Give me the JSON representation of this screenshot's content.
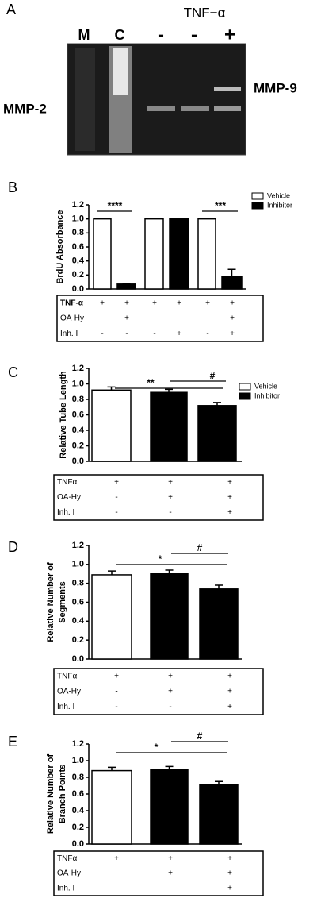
{
  "gel": {
    "panel": "A",
    "treatment_label": "TNF−α",
    "lanes": [
      "M",
      "C",
      "-",
      "-",
      "+"
    ],
    "bands": [
      "MMP-2",
      "MMP-9"
    ]
  },
  "chart_data": [
    {
      "type": "bar",
      "panel": "B",
      "y_label": "BrdU Absorbance",
      "categories": [
        null,
        null,
        null,
        null,
        null,
        null
      ],
      "series": [
        {
          "name": "Vehicle",
          "color": "#ffffff",
          "values": [
            1.0,
            null,
            1.0,
            null,
            1.0,
            null
          ]
        },
        {
          "name": "Inhibitor",
          "color": "#000000",
          "values": [
            null,
            0.07,
            null,
            1.0,
            null,
            0.18
          ]
        }
      ],
      "errors": [
        0.01,
        0.005,
        0.005,
        0.005,
        0.005,
        0.1
      ],
      "ylim": [
        0,
        1.2
      ],
      "yticks": [
        {
          "value": 0,
          "label": "0.0"
        },
        {
          "value": 0.2,
          "label": "0.2"
        },
        {
          "value": 0.4,
          "label": "0.4"
        },
        {
          "value": 0.6,
          "label": "0.6"
        },
        {
          "value": 0.8,
          "label": "0.8"
        },
        {
          "value": 1,
          "label": "1.0"
        },
        {
          "value": 1.2,
          "label": "1.2"
        }
      ],
      "annotations": [
        "****",
        "***"
      ],
      "table": [
        {
          "label": "TNF-α",
          "cells": [
            "+",
            "+",
            "+",
            "+",
            "+",
            "+"
          ]
        },
        {
          "label": "OA-Hy",
          "cells": [
            "-",
            "+",
            "-",
            "-",
            "-",
            "+"
          ]
        },
        {
          "label": "Inh. I",
          "cells": [
            "-",
            "-",
            "-",
            "+",
            "-",
            "+"
          ]
        }
      ]
    },
    {
      "type": "bar",
      "panel": "C",
      "y_label": "Relative Tube Length",
      "categories": [
        null,
        null,
        null
      ],
      "series": [
        {
          "name": "Vehicle",
          "color": "#ffffff",
          "values": [
            0.92,
            null,
            null
          ]
        },
        {
          "name": "Inhibitor",
          "color": "#000000",
          "values": [
            null,
            0.89,
            0.72
          ]
        }
      ],
      "errors": [
        0.04,
        0.04,
        0.04
      ],
      "ylim": [
        0,
        1.2
      ],
      "yticks": [
        {
          "value": 0,
          "label": "0.0"
        },
        {
          "value": 0.2,
          "label": "0.2"
        },
        {
          "value": 0.4,
          "label": "0.4"
        },
        {
          "value": 0.6,
          "label": "0.6"
        },
        {
          "value": 0.8,
          "label": "0.8"
        },
        {
          "value": 1,
          "label": "1.0"
        },
        {
          "value": 1.2,
          "label": "1.2"
        }
      ],
      "annotations": [
        "**",
        "#"
      ],
      "table": [
        {
          "label": "TNFα",
          "cells": [
            "+",
            "+",
            "+"
          ]
        },
        {
          "label": "OA-Hy",
          "cells": [
            "-",
            "+",
            "+"
          ]
        },
        {
          "label": "Inh. I",
          "cells": [
            "-",
            "-",
            "+"
          ]
        }
      ]
    },
    {
      "type": "bar",
      "panel": "D",
      "y_label": [
        "Relative Number of",
        "Segments"
      ],
      "categories": [
        null,
        null,
        null
      ],
      "values": [
        0.89,
        0.9,
        0.74
      ],
      "colors": [
        "#ffffff",
        "#000000",
        "#000000"
      ],
      "errors": [
        0.04,
        0.04,
        0.04
      ],
      "ylim": [
        0,
        1.2
      ],
      "yticks": [
        {
          "value": 0,
          "label": "0.0"
        },
        {
          "value": 0.2,
          "label": "0.2"
        },
        {
          "value": 0.4,
          "label": "0.4"
        },
        {
          "value": 0.6,
          "label": "0.6"
        },
        {
          "value": 0.8,
          "label": "0.8"
        },
        {
          "value": 1,
          "label": "1.0"
        },
        {
          "value": 1.2,
          "label": "1.2"
        }
      ],
      "annotations": [
        "*",
        "#"
      ],
      "table": [
        {
          "label": "TNFα",
          "cells": [
            "+",
            "+",
            "+"
          ]
        },
        {
          "label": "OA-Hy",
          "cells": [
            "-",
            "+",
            "+"
          ]
        },
        {
          "label": "Inh. I",
          "cells": [
            "-",
            "-",
            "+"
          ]
        }
      ]
    },
    {
      "type": "bar",
      "panel": "E",
      "y_label": [
        "Relative Number of",
        "Branch Points"
      ],
      "categories": [
        null,
        null,
        null
      ],
      "values": [
        0.88,
        0.89,
        0.71
      ],
      "colors": [
        "#ffffff",
        "#000000",
        "#000000"
      ],
      "errors": [
        0.04,
        0.04,
        0.04
      ],
      "ylim": [
        0,
        1.2
      ],
      "yticks": [
        {
          "value": 0,
          "label": "0.0"
        },
        {
          "value": 0.2,
          "label": "0.2"
        },
        {
          "value": 0.4,
          "label": "0.4"
        },
        {
          "value": 0.6,
          "label": "0.6"
        },
        {
          "value": 0.8,
          "label": "0.8"
        },
        {
          "value": 1,
          "label": "1.0"
        },
        {
          "value": 1.2,
          "label": "1.2"
        }
      ],
      "annotations": [
        "*",
        "#"
      ],
      "table": [
        {
          "label": "TNFα",
          "cells": [
            "+",
            "+",
            "+"
          ]
        },
        {
          "label": "OA-Hy",
          "cells": [
            "-",
            "+",
            "+"
          ]
        },
        {
          "label": "Inh. I",
          "cells": [
            "-",
            "-",
            "+"
          ]
        }
      ]
    }
  ]
}
